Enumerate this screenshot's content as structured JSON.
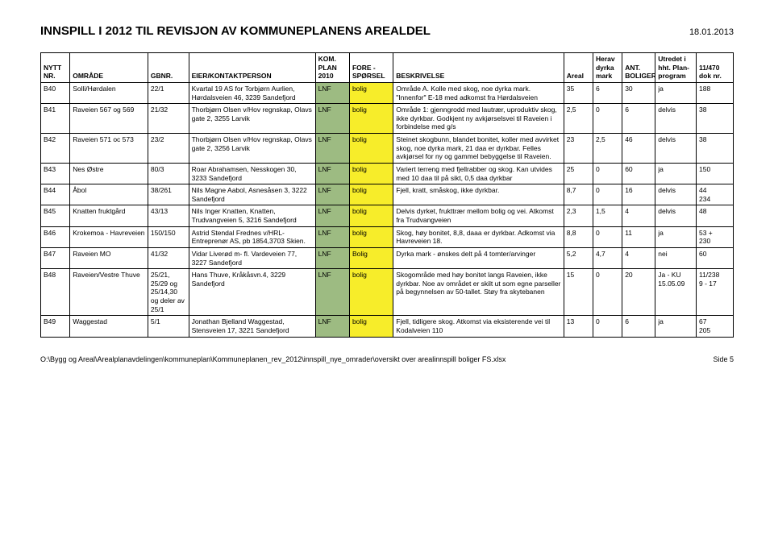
{
  "page": {
    "title": "INNSPILL I 2012 TIL REVISJON AV KOMMUNEPLANENS AREALDEL",
    "date": "18.01.2013",
    "footer_path": "O:\\Bygg og Areal\\Arealplanavdelingen\\kommuneplan\\Kommuneplanen_rev_2012\\innspill_nye_omrader\\oversikt over arealinnspill boliger FS.xlsx",
    "footer_page": "Side 5"
  },
  "headers": {
    "nytt": "NYTT NR.",
    "omrade": "OMRÅDE",
    "gbnr": "GBNR.",
    "eier": "EIER/KONTAKTPERSON",
    "kom": "KOM. PLAN 2010",
    "fore": "FORE - SPØRSEL",
    "besk": "BESKRIVELSE",
    "areal": "Areal",
    "herav": "Herav dyrka mark",
    "ant": "ANT. BOLIGER",
    "utr": "Utredet i hht. Plan-program",
    "dok": "11/470 dok nr."
  },
  "rows": [
    {
      "nytt": "B40",
      "omrade": "Solli/Hørdalen",
      "gbnr": "22/1",
      "eier": "Kvartal 19 AS for Torbjørn Aurlien, Hørdalsveien 46, 3239 Sandefjord",
      "kom": "LNF",
      "fore": "bolig",
      "besk": "Område A. Kolle med skog, noe dyrka mark. \"Innenfor\" E-18 med adkomst fra Hørdalsveien",
      "areal": "35",
      "herav": "6",
      "ant": "30",
      "utr": "ja",
      "dok": "188"
    },
    {
      "nytt": "B41",
      "omrade": "Raveien 567 og 569",
      "gbnr": "21/32",
      "eier": "Thorbjørn Olsen v/Hov regnskap, Olavs gate 2, 3255 Larvik",
      "kom": "LNF",
      "fore": "bolig",
      "besk": "Område 1: gjenngrodd med lautrær, uproduktiv skog, ikke dyrkbar. Godkjent ny avkjørselsvei til Raveien i forbindelse med g/s",
      "areal": "2,5",
      "herav": "0",
      "ant": "6",
      "utr": "delvis",
      "dok": "38"
    },
    {
      "nytt": "B42",
      "omrade": "Raveien 571 oc 573",
      "gbnr": "23/2",
      "eier": "Thorbjørn Olsen v/Hov regnskap, Olavs gate 2, 3256 Larvik",
      "kom": "LNF",
      "fore": "bolig",
      "besk": "Steinet skogbunn, blandet bonitet, koller med avvirket skog, noe dyrka mark, 21 daa er dyrkbar. Felles avkjørsel for ny og gammel bebyggelse til Raveien.",
      "areal": "23",
      "herav": "2,5",
      "ant": "46",
      "utr": "delvis",
      "dok": "38"
    },
    {
      "nytt": "B43",
      "omrade": "Nes Østre",
      "gbnr": "80/3",
      "eier": "Roar Abrahamsen, Nesskogen 30, 3233 Sandefjord",
      "kom": "LNF",
      "fore": "bolig",
      "besk": "Variert terreng med fjellrabber og skog. Kan utvides med 10 daa til på sikt, 0,5 daa dyrkbar",
      "areal": "25",
      "herav": "0",
      "ant": "60",
      "utr": "ja",
      "dok": "150"
    },
    {
      "nytt": "B44",
      "omrade": "Åbol",
      "gbnr": "38/261",
      "eier": "Nils Magne Aabol, Asnesåsen 3, 3222 Sandefjord",
      "kom": "LNF",
      "fore": "bolig",
      "besk": "Fjell, kratt, småskog, ikke dyrkbar.",
      "areal": "8,7",
      "herav": "0",
      "ant": "16",
      "utr": "delvis",
      "dok": "44\n234"
    },
    {
      "nytt": "B45",
      "omrade": "Knatten fruktgård",
      "gbnr": "43/13",
      "eier": "Nils Inger Knatten, Knatten, Trudvangveien 5, 3216 Sandefjord",
      "kom": "LNF",
      "fore": "bolig",
      "besk": "Delvis dyrket, frukttrær mellom bolig og vei. Atkomst fra Trudvangveien",
      "areal": "2,3",
      "herav": "1,5",
      "ant": "4",
      "utr": "delvis",
      "dok": "48"
    },
    {
      "nytt": "B46",
      "omrade": "Krokemoa - Havreveien",
      "gbnr": "150/150",
      "eier": "Astrid Stendal Frednes v/HRL-Entreprenør AS, pb 1854,3703 Skien.",
      "kom": "LNF",
      "fore": "bolig",
      "besk": "Skog, høy bonitet, 8,8, daaa er dyrkbar. Adkomst via Havreveien 18.",
      "areal": "8,8",
      "herav": "0",
      "ant": "11",
      "utr": "ja",
      "dok": "53 +\n230"
    },
    {
      "nytt": "B47",
      "omrade": "Raveien MO",
      "gbnr": "41/32",
      "eier": "Vidar Liverød m- fl. Vardeveien 77, 3227 Sandefjord",
      "kom": "LNF",
      "fore": "Bolig",
      "besk": "Dyrka mark - ønskes delt på 4 tomter/arvinger",
      "areal": "5,2",
      "herav": "4,7",
      "ant": "4",
      "utr": "nei",
      "dok": "60"
    },
    {
      "nytt": "B48",
      "omrade": "Raveien/Vestre Thuve",
      "gbnr": "25/21, 25/29 og 25/14,30 og deler av 25/1",
      "eier": "Hans Thuve, Kråkåsvn.4, 3229 Sandefjord",
      "kom": "LNF",
      "fore": "bolig",
      "besk": "Skogområde med høy bonitet langs Raveien, ikke dyrkbar. Noe av området er skilt ut som egne parseller på begynnelsen av 50-tallet. Støy fra skytebanen",
      "areal": "15",
      "herav": "0",
      "ant": "20",
      "utr": "Ja - KU 15.05.09",
      "dok": "11/238\n9 - 17"
    },
    {
      "nytt": "B49",
      "omrade": "Waggestad",
      "gbnr": "5/1",
      "eier": "Jonathan Bjelland Waggestad, Stensveien 17, 3221 Sandefjord",
      "kom": "LNF",
      "fore": "bolig",
      "besk": "Fjell, tidligere skog. Atkomst via eksisterende vei til Kodalveien 110",
      "areal": "13",
      "herav": "0",
      "ant": "6",
      "utr": "ja",
      "dok": "67\n205"
    }
  ],
  "style": {
    "green": "#9dbb82",
    "yellow": "#f7ed2a"
  }
}
